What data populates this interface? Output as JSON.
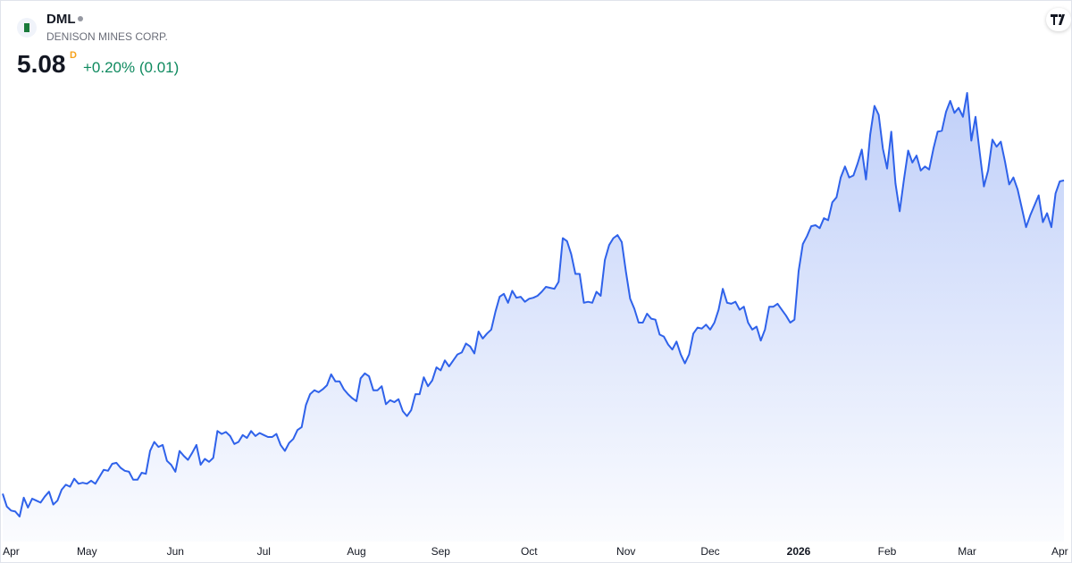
{
  "header": {
    "symbol": "DML",
    "company": "DENISON MINES CORP.",
    "price": "5.08",
    "interval": "D",
    "change": "+0.20% (0.01)"
  },
  "chart_data": {
    "type": "area",
    "color": "#2f62ea",
    "categories": [
      null,
      null,
      "Apr",
      null,
      null,
      null,
      null,
      null,
      null,
      null,
      null,
      null,
      null,
      null,
      null,
      null,
      null,
      null,
      null,
      null,
      "May",
      null,
      null,
      null,
      null,
      null,
      null,
      null,
      null,
      null,
      null,
      null,
      null,
      null,
      null,
      null,
      null,
      null,
      null,
      null,
      null,
      "Jun",
      null,
      null,
      null,
      null,
      null,
      null,
      null,
      null,
      null,
      null,
      null,
      null,
      null,
      null,
      null,
      null,
      null,
      null,
      null,
      null,
      "Jul",
      null,
      null,
      null,
      null,
      null,
      null,
      null,
      null,
      null,
      null,
      null,
      null,
      null,
      null,
      null,
      null,
      null,
      null,
      null,
      null,
      null,
      "Aug",
      null,
      null,
      null,
      null,
      null,
      null,
      null,
      null,
      null,
      null,
      null,
      null,
      null,
      null,
      null,
      null,
      null,
      null,
      null,
      "Sep",
      null,
      null,
      null,
      null,
      null,
      null,
      null,
      null,
      null,
      null,
      null,
      null,
      null,
      null,
      null,
      null,
      null,
      null,
      null,
      null,
      "Oct",
      null,
      null,
      null,
      null,
      null,
      null,
      null,
      null,
      null,
      null,
      null,
      null,
      null,
      null,
      null,
      null,
      null,
      null,
      null,
      null,
      null,
      null,
      "Nov",
      null,
      null,
      null,
      null,
      null,
      null,
      null,
      null,
      null,
      null,
      null,
      null,
      null,
      null,
      null,
      null,
      null,
      null,
      null,
      "Dec",
      null,
      null,
      null,
      null,
      null,
      null,
      null,
      null,
      null,
      null,
      null,
      null,
      null,
      null,
      null,
      null,
      null,
      null,
      null,
      null,
      "2026",
      null,
      null,
      null,
      null,
      null,
      null,
      null,
      null,
      null,
      null,
      null,
      null,
      null,
      null,
      null,
      null,
      null,
      null,
      null,
      null,
      "Feb",
      null,
      null,
      null,
      null,
      null,
      null,
      null,
      null,
      null,
      null,
      null,
      null,
      null,
      null,
      null,
      null,
      null,
      null,
      "Mar",
      null,
      null,
      null,
      null,
      null,
      null,
      null,
      null,
      null,
      null,
      null,
      null,
      null,
      null,
      null,
      null,
      null,
      null,
      null,
      null,
      null,
      "Apr",
      null
    ],
    "values": [
      1.93,
      1.8,
      1.76,
      1.75,
      1.7,
      1.89,
      1.79,
      1.88,
      1.86,
      1.84,
      1.9,
      1.95,
      1.82,
      1.86,
      1.97,
      2.02,
      2.0,
      2.08,
      2.03,
      2.04,
      2.03,
      2.06,
      2.03,
      2.1,
      2.17,
      2.16,
      2.23,
      2.24,
      2.19,
      2.16,
      2.15,
      2.07,
      2.07,
      2.14,
      2.13,
      2.36,
      2.45,
      2.4,
      2.42,
      2.26,
      2.22,
      2.15,
      2.36,
      2.31,
      2.27,
      2.34,
      2.42,
      2.22,
      2.28,
      2.25,
      2.29,
      2.56,
      2.53,
      2.55,
      2.51,
      2.43,
      2.45,
      2.52,
      2.49,
      2.56,
      2.51,
      2.54,
      2.52,
      2.5,
      2.5,
      2.53,
      2.42,
      2.36,
      2.44,
      2.48,
      2.57,
      2.6,
      2.82,
      2.93,
      2.97,
      2.95,
      2.98,
      3.02,
      3.13,
      3.06,
      3.06,
      2.98,
      2.93,
      2.89,
      2.86,
      3.09,
      3.14,
      3.11,
      2.97,
      2.97,
      3.01,
      2.83,
      2.87,
      2.85,
      2.88,
      2.76,
      2.71,
      2.77,
      2.93,
      2.93,
      3.1,
      3.01,
      3.07,
      3.2,
      3.17,
      3.27,
      3.21,
      3.27,
      3.33,
      3.35,
      3.44,
      3.41,
      3.34,
      3.56,
      3.49,
      3.54,
      3.58,
      3.76,
      3.91,
      3.94,
      3.85,
      3.97,
      3.9,
      3.91,
      3.86,
      3.89,
      3.9,
      3.92,
      3.96,
      4.01,
      4.0,
      3.99,
      4.06,
      4.5,
      4.47,
      4.34,
      4.14,
      4.14,
      3.85,
      3.86,
      3.85,
      3.96,
      3.92,
      4.28,
      4.43,
      4.5,
      4.53,
      4.46,
      4.16,
      3.89,
      3.79,
      3.65,
      3.65,
      3.74,
      3.69,
      3.68,
      3.53,
      3.51,
      3.43,
      3.38,
      3.46,
      3.33,
      3.24,
      3.33,
      3.54,
      3.6,
      3.59,
      3.63,
      3.58,
      3.65,
      3.78,
      3.99,
      3.85,
      3.84,
      3.86,
      3.78,
      3.81,
      3.65,
      3.58,
      3.61,
      3.47,
      3.58,
      3.81,
      3.81,
      3.84,
      3.78,
      3.72,
      3.65,
      3.68,
      4.17,
      4.44,
      4.52,
      4.62,
      4.63,
      4.6,
      4.7,
      4.68,
      4.86,
      4.91,
      5.11,
      5.22,
      5.11,
      5.13,
      5.25,
      5.39,
      5.09,
      5.54,
      5.83,
      5.74,
      5.4,
      5.2,
      5.57,
      5.05,
      4.77,
      5.09,
      5.38,
      5.26,
      5.33,
      5.18,
      5.22,
      5.19,
      5.4,
      5.57,
      5.58,
      5.77,
      5.88,
      5.76,
      5.81,
      5.72,
      5.96,
      5.48,
      5.72,
      5.36,
      5.02,
      5.18,
      5.49,
      5.42,
      5.47,
      5.27,
      5.04,
      5.11,
      4.99,
      4.8,
      4.61,
      4.73,
      4.83,
      4.93,
      4.66,
      4.75,
      4.61,
      4.95,
      5.07,
      5.08
    ]
  }
}
